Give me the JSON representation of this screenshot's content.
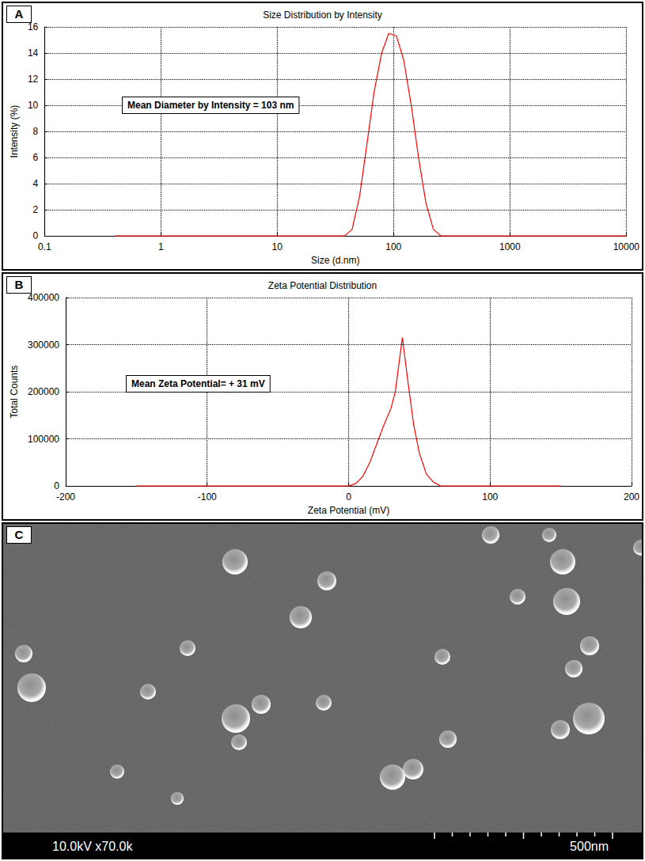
{
  "chart_data": [
    {
      "panel": "A",
      "type": "line",
      "title": "Size Distribution by Intensity",
      "x_label": "Size (d.nm)",
      "y_label": "Intensity (%)",
      "annotations": [
        "Mean Diameter by Intensity = 103 nm"
      ],
      "log": "x",
      "grid": true,
      "xlim": [
        0.1,
        10000
      ],
      "xticks": [
        0.1,
        1,
        10,
        100,
        1000,
        10000
      ],
      "ylim": [
        0,
        16
      ],
      "yticks": [
        0,
        2,
        4,
        6,
        8,
        10,
        12,
        14,
        16
      ],
      "series": [
        {
          "name": "Intensity",
          "color": "#ff0000",
          "x": [
            0.4,
            1,
            10,
            38,
            44,
            51,
            59,
            68,
            79,
            91,
            106,
            122,
            142,
            164,
            190,
            220,
            255,
            1000,
            10000
          ],
          "values": [
            0,
            0,
            0,
            0,
            0.5,
            3,
            7,
            11,
            14,
            15.5,
            15.3,
            13.5,
            10,
            6,
            2.5,
            0.5,
            0,
            0,
            0
          ]
        }
      ]
    },
    {
      "panel": "B",
      "type": "line",
      "title": "Zeta Potential Distribution",
      "x_label": "Zeta Potential (mV)",
      "y_label": "Total Counts",
      "annotations": [
        "Mean Zeta Potential= + 31 mV"
      ],
      "grid": true,
      "xlim": [
        -200,
        200
      ],
      "xticks": [
        -200,
        -100,
        0,
        100,
        200
      ],
      "ylim": [
        0,
        400000
      ],
      "yticks": [
        0,
        100000,
        200000,
        300000,
        400000
      ],
      "series": [
        {
          "name": "Total Counts",
          "color": "#ff0000",
          "x": [
            -150,
            0,
            5,
            10,
            15,
            20,
            25,
            30,
            33,
            38,
            42,
            46,
            50,
            55,
            60,
            65,
            150
          ],
          "values": [
            0,
            0,
            5000,
            20000,
            50000,
            90000,
            130000,
            165000,
            200000,
            315000,
            220000,
            130000,
            70000,
            25000,
            8000,
            0,
            0
          ]
        }
      ]
    }
  ],
  "image": {
    "panel": "C",
    "caption": "10.0kV x70.0k",
    "scale_bar": "500nm"
  }
}
